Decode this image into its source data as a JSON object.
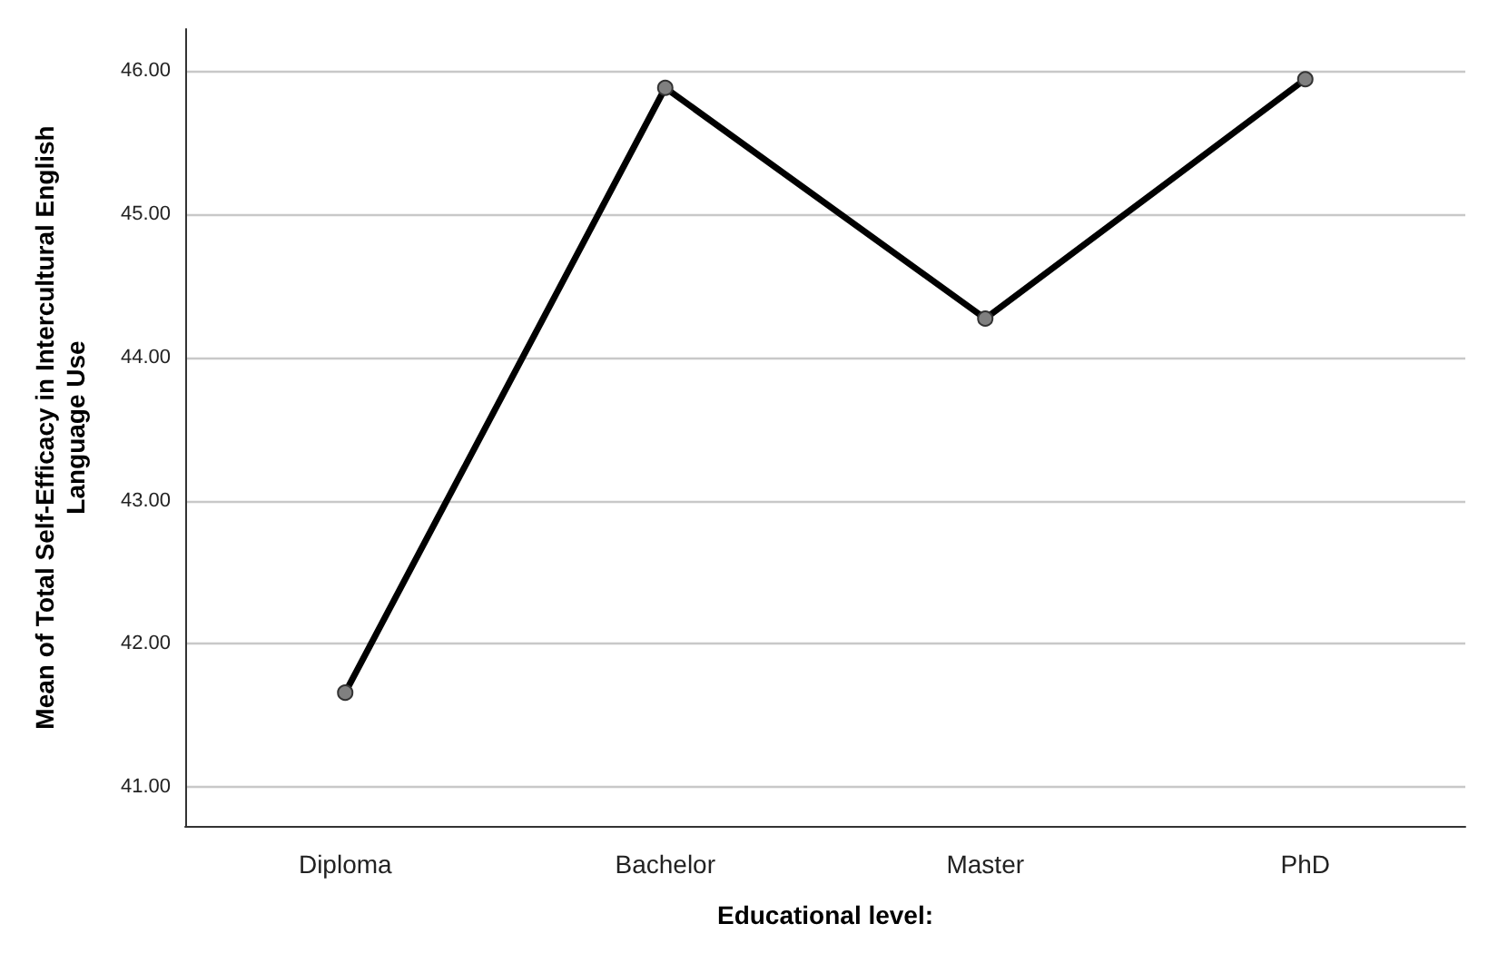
{
  "chart_data": {
    "type": "line",
    "xlabel": "Educational level:",
    "ylabel": "Mean of Total Self-Efficacy in Intercultural English\nLanguage Use",
    "categories": [
      "Diploma",
      "Bachelor",
      "Master",
      "PhD"
    ],
    "series": [
      {
        "color": "#000000",
        "values": [
          41.66,
          45.88,
          44.27,
          45.94
        ]
      }
    ],
    "ylim": [
      40.73,
      46.29
    ],
    "yticks": [
      {
        "value": 41,
        "label": "41.00"
      },
      {
        "value": 42,
        "label": "42.00"
      },
      {
        "value": 43,
        "label": "43.00"
      },
      {
        "value": 44,
        "label": "44.00"
      },
      {
        "value": 45,
        "label": "45.00"
      },
      {
        "value": 46,
        "label": "46.00"
      }
    ],
    "grid": "y",
    "marker": "circle",
    "line_style": "solid"
  }
}
